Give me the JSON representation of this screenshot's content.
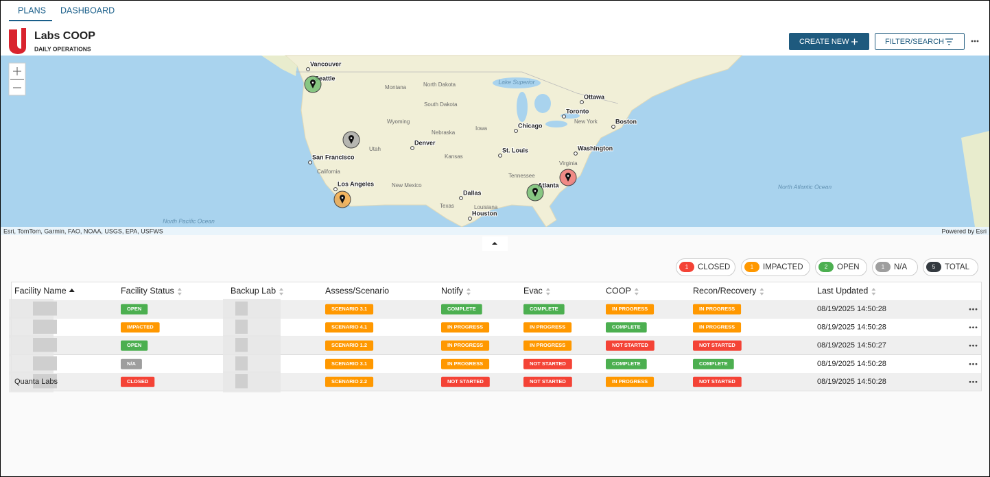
{
  "tabs": [
    "PLANS",
    "DASHBOARD"
  ],
  "header": {
    "title": "Labs COOP",
    "subtitle": "DAILY OPERATIONS",
    "create_button": "CREATE NEW",
    "filter_button": "FILTER/SEARCH"
  },
  "map": {
    "cities": [
      "Vancouver",
      "Seattle",
      "Ottawa",
      "Toronto",
      "Boston",
      "Chicago",
      "Denver",
      "St. Louis",
      "Washington",
      "San Francisco",
      "Los Angeles",
      "Atlanta",
      "Dallas",
      "Houston"
    ],
    "regions": [
      "Montana",
      "North Dakota",
      "South Dakota",
      "Wyoming",
      "Nebraska",
      "Iowa",
      "Utah",
      "Kansas",
      "California",
      "New Mexico",
      "Tennessee",
      "Texas",
      "Louisiana",
      "Virginia",
      "New York"
    ],
    "waters": [
      "Lake Superior",
      "North Pacific Ocean",
      "North Atlantic Ocean"
    ],
    "attribution": "Esri, TomTom, Garmin, FAO, NOAA, USGS, EPA, USFWS",
    "powered_by": "Powered by Esri"
  },
  "legend": [
    {
      "count": 1,
      "label": "CLOSED",
      "color": "#f44336"
    },
    {
      "count": 1,
      "label": "IMPACTED",
      "color": "#ff9800"
    },
    {
      "count": 2,
      "label": "OPEN",
      "color": "#4caf50"
    },
    {
      "count": 1,
      "label": "N/A",
      "color": "#9e9e9e"
    },
    {
      "count": 5,
      "label": "TOTAL",
      "color": "#343a40"
    }
  ],
  "table": {
    "columns": [
      "Facility Name",
      "Facility Status",
      "Backup Lab",
      "Assess/Scenario",
      "Notify",
      "Evac",
      "COOP",
      "Recon/Recovery",
      "Last Updated"
    ],
    "rows": [
      {
        "facility_status": {
          "text": "OPEN",
          "color": "#4caf50"
        },
        "assess": {
          "text": "SCENARIO 3.1",
          "color": "#ff9800"
        },
        "notify": {
          "text": "COMPLETE",
          "color": "#4caf50"
        },
        "evac": {
          "text": "COMPLETE",
          "color": "#4caf50"
        },
        "coop": {
          "text": "IN PROGRESS",
          "color": "#ff9800"
        },
        "recon": {
          "text": "IN PROGRESS",
          "color": "#ff9800"
        },
        "last_updated": "08/19/2025 14:50:28"
      },
      {
        "facility_status": {
          "text": "IMPACTED",
          "color": "#ff9800"
        },
        "assess": {
          "text": "SCENARIO 4.1",
          "color": "#ff9800"
        },
        "notify": {
          "text": "IN PROGRESS",
          "color": "#ff9800"
        },
        "evac": {
          "text": "IN PROGRESS",
          "color": "#ff9800"
        },
        "coop": {
          "text": "COMPLETE",
          "color": "#4caf50"
        },
        "recon": {
          "text": "IN PROGRESS",
          "color": "#ff9800"
        },
        "last_updated": "08/19/2025 14:50:28"
      },
      {
        "facility_status": {
          "text": "OPEN",
          "color": "#4caf50"
        },
        "assess": {
          "text": "SCENARIO 1.2",
          "color": "#ff9800"
        },
        "notify": {
          "text": "IN PROGRESS",
          "color": "#ff9800"
        },
        "evac": {
          "text": "IN PROGRESS",
          "color": "#ff9800"
        },
        "coop": {
          "text": "NOT STARTED",
          "color": "#f44336"
        },
        "recon": {
          "text": "NOT STARTED",
          "color": "#f44336"
        },
        "last_updated": "08/19/2025 14:50:27"
      },
      {
        "facility_status": {
          "text": "N/A",
          "color": "#9e9e9e"
        },
        "assess": {
          "text": "SCENARIO 3.1",
          "color": "#ff9800"
        },
        "notify": {
          "text": "IN PROGRESS",
          "color": "#ff9800"
        },
        "evac": {
          "text": "NOT STARTED",
          "color": "#f44336"
        },
        "coop": {
          "text": "COMPLETE",
          "color": "#4caf50"
        },
        "recon": {
          "text": "COMPLETE",
          "color": "#4caf50"
        },
        "last_updated": "08/19/2025 14:50:28"
      },
      {
        "facility_name": "Quanta Labs",
        "facility_status": {
          "text": "CLOSED",
          "color": "#f44336"
        },
        "assess": {
          "text": "SCENARIO 2.2",
          "color": "#ff9800"
        },
        "notify": {
          "text": "NOT STARTED",
          "color": "#f44336"
        },
        "evac": {
          "text": "NOT STARTED",
          "color": "#f44336"
        },
        "coop": {
          "text": "IN PROGRESS",
          "color": "#ff9800"
        },
        "recon": {
          "text": "NOT STARTED",
          "color": "#f44336"
        },
        "last_updated": "08/19/2025 14:50:28"
      }
    ]
  }
}
